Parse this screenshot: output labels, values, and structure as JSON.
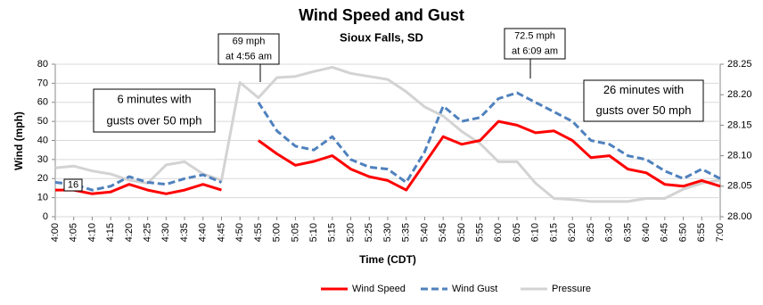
{
  "chart_data": {
    "type": "line",
    "title": "Wind Speed and Gust",
    "subtitle": "Sioux Falls, SD",
    "x_label": "Time (CDT)",
    "y_label": "Wind (mph)",
    "categories": [
      "4:00",
      "4:05",
      "4:10",
      "4:15",
      "4:20",
      "4:25",
      "4:30",
      "4:35",
      "4:40",
      "4:45",
      "4:50",
      "4:55",
      "5:00",
      "5:05",
      "5:10",
      "5:15",
      "5:20",
      "5:25",
      "5:30",
      "5:35",
      "5:40",
      "5:45",
      "5:50",
      "5:55",
      "6:00",
      "6:05",
      "6:10",
      "6:15",
      "6:20",
      "6:25",
      "6:30",
      "6:35",
      "6:40",
      "6:45",
      "6:50",
      "6:55",
      "7:00"
    ],
    "series": [
      {
        "name": "Wind Speed",
        "color": "#ff0000",
        "style": "solid",
        "values": [
          14,
          14,
          12,
          13,
          17,
          14,
          12,
          14,
          17,
          14,
          null,
          40,
          33,
          27,
          29,
          32,
          25,
          21,
          19,
          14,
          28,
          42,
          38,
          40,
          50,
          48,
          44,
          45,
          40,
          31,
          32,
          25,
          23,
          17,
          16,
          19,
          16
        ]
      },
      {
        "name": "Wind Gust",
        "color": "#4f81bd",
        "style": "dashed",
        "values": [
          18,
          17,
          14,
          16,
          21,
          18,
          17,
          20,
          22,
          18,
          null,
          60,
          45,
          37,
          35,
          42,
          30,
          26,
          25,
          18,
          34,
          58,
          50,
          52,
          62,
          65,
          60,
          55,
          50,
          40,
          38,
          32,
          30,
          24,
          20,
          25,
          20
        ]
      },
      {
        "name": "Pressure",
        "color": "#d3d3d3",
        "style": "solid",
        "axis": "y2",
        "values": [
          28.08,
          28.083,
          28.075,
          28.07,
          28.06,
          28.055,
          28.085,
          28.09,
          28.07,
          28.06,
          28.22,
          28.195,
          28.228,
          28.23,
          28.238,
          28.245,
          28.235,
          28.23,
          28.225,
          28.205,
          28.18,
          28.165,
          28.14,
          28.12,
          28.09,
          28.09,
          28.055,
          28.03,
          28.028,
          28.025,
          28.025,
          28.025,
          28.03,
          28.03,
          28.045,
          28.055,
          28.06
        ]
      }
    ],
    "ylim": [
      0,
      80
    ],
    "yticks": [
      0,
      10,
      20,
      30,
      40,
      50,
      60,
      70,
      80
    ],
    "y2lim": [
      28.0,
      28.25
    ],
    "y2ticks": [
      {
        "value": 28.0,
        "label": "28.00"
      },
      {
        "value": 28.05,
        "label": "28.05"
      },
      {
        "value": 28.1,
        "label": "28.10"
      },
      {
        "value": 28.15,
        "label": "28.15"
      },
      {
        "value": 28.2,
        "label": "28.20"
      },
      {
        "value": 28.25,
        "label": "28.25"
      }
    ],
    "grid": true,
    "legend": "bottom",
    "annotations": [
      {
        "lines": [
          "69 mph",
          "at 4:56 am"
        ]
      },
      {
        "lines": [
          "72.5 mph",
          "at 6:09 am"
        ]
      },
      {
        "lines": [
          "6 minutes with",
          "gusts over 50 mph"
        ]
      },
      {
        "lines": [
          "26 minutes with",
          "gusts over 50 mph"
        ]
      },
      {
        "lines": [
          "16"
        ]
      }
    ]
  }
}
